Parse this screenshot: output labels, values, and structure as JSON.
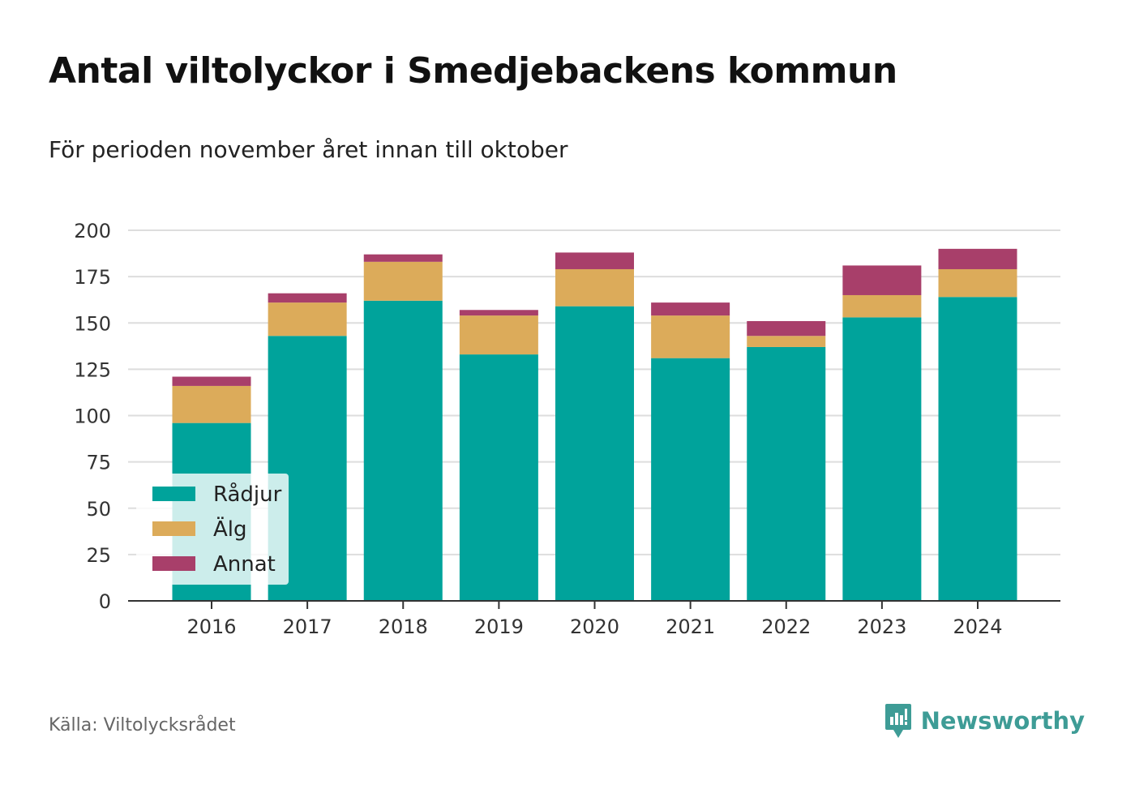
{
  "title": "Antal viltolyckor i Smedjebackens kommun",
  "subtitle": "För perioden november året innan till oktober",
  "source": "Källa: Viltolycksrådet",
  "brand": {
    "name": "Newsworthy",
    "icon": "newsworthy-logo-icon",
    "color": "#3e9c96"
  },
  "chart_data": {
    "type": "bar",
    "stacked": true,
    "categories": [
      "2016",
      "2017",
      "2018",
      "2019",
      "2020",
      "2021",
      "2022",
      "2023",
      "2024"
    ],
    "series": [
      {
        "name": "Rådjur",
        "color": "#00a39b",
        "values": [
          96,
          143,
          162,
          133,
          159,
          131,
          137,
          153,
          164
        ]
      },
      {
        "name": "Älg",
        "color": "#dcab5a",
        "values": [
          20,
          18,
          21,
          21,
          20,
          23,
          6,
          12,
          15
        ]
      },
      {
        "name": "Annat",
        "color": "#a83f6a",
        "values": [
          5,
          5,
          4,
          3,
          9,
          7,
          8,
          16,
          11
        ]
      }
    ],
    "ylim": [
      0,
      200
    ],
    "yticks": [
      0,
      25,
      50,
      75,
      100,
      125,
      150,
      175,
      200
    ],
    "grid": true,
    "legend": "bottom-left",
    "xlabel": "",
    "ylabel": ""
  }
}
